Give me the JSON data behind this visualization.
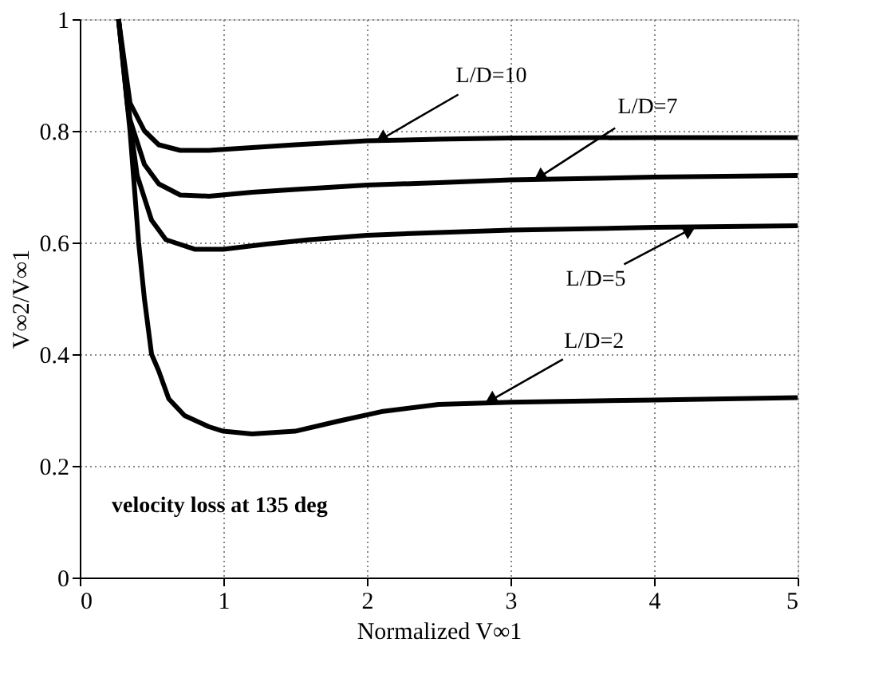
{
  "chart_data": {
    "type": "line",
    "xlabel": "Normalized V∞1",
    "ylabel": "V∞2/V∞1",
    "xlim": [
      0,
      5
    ],
    "xticks": [
      0,
      1,
      2,
      3,
      4,
      5
    ],
    "ylim": [
      0,
      1
    ],
    "yticks": [
      0,
      0.2,
      0.4,
      0.6,
      0.8,
      1
    ],
    "grid": true,
    "legend": false,
    "marker": "none",
    "line_style": "solid",
    "series": [
      {
        "color": "#000000",
        "x": [
          0.27,
          0.35,
          0.45,
          0.55,
          0.7,
          0.9,
          1.2,
          1.5,
          2,
          2.5,
          3,
          4,
          5
        ],
        "values": [
          1.0,
          0.85,
          0.8,
          0.775,
          0.765,
          0.765,
          0.77,
          0.775,
          0.782,
          0.785,
          0.787,
          0.788,
          0.788
        ]
      },
      {
        "color": "#000000",
        "x": [
          0.27,
          0.35,
          0.45,
          0.55,
          0.7,
          0.9,
          1.2,
          1.5,
          2,
          2.5,
          3,
          4,
          5
        ],
        "values": [
          1.0,
          0.82,
          0.74,
          0.705,
          0.685,
          0.683,
          0.69,
          0.695,
          0.703,
          0.707,
          0.712,
          0.717,
          0.72
        ]
      },
      {
        "color": "#000000",
        "x": [
          0.27,
          0.33,
          0.4,
          0.5,
          0.6,
          0.8,
          1,
          1.3,
          1.6,
          2,
          2.5,
          3,
          4,
          5
        ],
        "values": [
          1.0,
          0.85,
          0.72,
          0.64,
          0.605,
          0.588,
          0.588,
          0.597,
          0.605,
          0.613,
          0.618,
          0.622,
          0.627,
          0.63
        ]
      },
      {
        "color": "#000000",
        "x": [
          0.27,
          0.35,
          0.41,
          0.45,
          0.5,
          0.55,
          0.62,
          0.73,
          0.9,
          1,
          1.2,
          1.5,
          1.8,
          2.1,
          2.5,
          3,
          4,
          5
        ],
        "values": [
          1.0,
          0.8,
          0.6,
          0.5,
          0.4,
          0.37,
          0.32,
          0.29,
          0.27,
          0.262,
          0.257,
          0.262,
          0.28,
          0.297,
          0.31,
          0.314,
          0.318,
          0.322
        ]
      }
    ],
    "annotations": [
      {
        "text": "L/D=10",
        "x": 2.1,
        "y": 0.785
      },
      {
        "text": "L/D=7",
        "x": 3.2,
        "y": 0.717
      },
      {
        "text": "L/D=5",
        "x": 4.25,
        "y": 0.623
      },
      {
        "text": "L/D=2",
        "x": 2.86,
        "y": 0.317
      },
      "velocity loss at 135 deg"
    ]
  }
}
